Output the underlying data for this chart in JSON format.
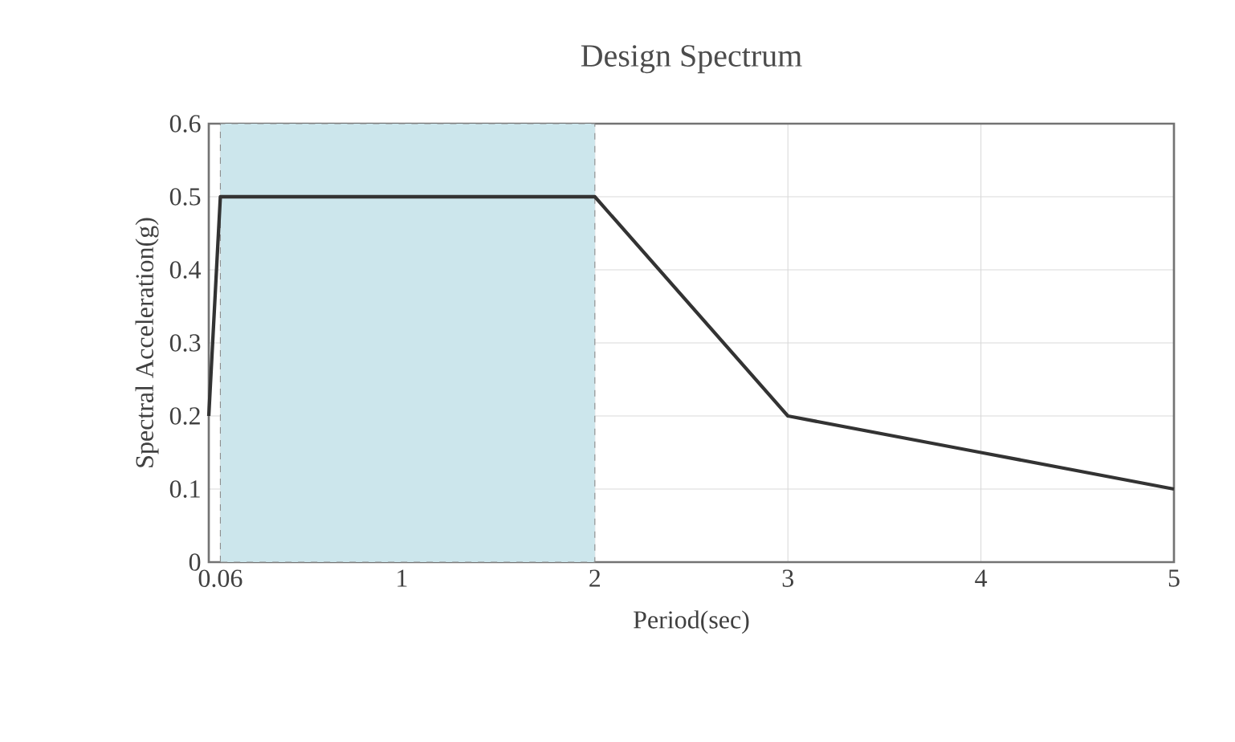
{
  "chart_data": {
    "type": "line",
    "title": "Design Spectrum",
    "xlabel": "Period(sec)",
    "ylabel": "Spectral Acceleration(g)",
    "x": [
      0,
      0.06,
      2,
      3,
      4,
      5
    ],
    "series": [
      {
        "color": "#333333",
        "values": [
          0.2,
          0.5,
          0.5,
          0.2,
          0.15,
          0.1
        ]
      }
    ],
    "xlim": [
      0,
      5
    ],
    "xticks": [
      0.06,
      1,
      2,
      3,
      4,
      5
    ],
    "ylim": [
      0,
      0.6
    ],
    "yticks": [
      0,
      0.1,
      0.2,
      0.3,
      0.4,
      0.5,
      0.6
    ],
    "bands": [
      {
        "axis": "x",
        "from": 0.06,
        "to": 2,
        "color": "#cce6ec"
      }
    ],
    "grid": true,
    "marker": "none",
    "line_style": "solid"
  }
}
